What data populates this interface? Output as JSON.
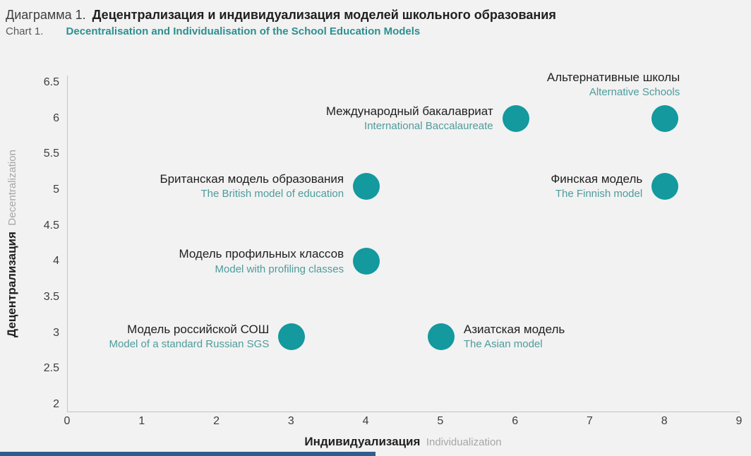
{
  "header": {
    "label_ru": "Диаграмма 1.",
    "title_ru": "Децентрализация и индивидуализация моделей школьного образования",
    "label_en": "Chart 1.",
    "title_en": "Decentralisation and Individualisation of the School Education Models"
  },
  "colors": {
    "background": "#f2f2f2",
    "marker": "#13999e",
    "title_teal": "#2e8f8f",
    "label_en": "#4f9b9b",
    "axis_en": "#a6a6a6",
    "text_dark": "#1f1f1f",
    "accent_bar": "#2e5e8e"
  },
  "chart_data": {
    "type": "scatter",
    "title": "Децентрализация и индивидуализация моделей школьного образования / Decentralisation and Individualisation of the School Education Models",
    "xlabel_ru": "Индивидуализация",
    "xlabel_en": "Individualization",
    "ylabel_ru": "Децентрализация",
    "ylabel_en": "Decentralization",
    "xlim": [
      0,
      9
    ],
    "ylim": [
      2,
      6.5
    ],
    "x_ticks": [
      0,
      1,
      2,
      3,
      4,
      5,
      6,
      7,
      8,
      9
    ],
    "y_ticks": [
      6.5,
      6,
      5.5,
      5,
      4.5,
      4,
      3.5,
      3,
      2.5,
      2
    ],
    "grid": false,
    "legend": false,
    "marker_color": "#13999e",
    "points": [
      {
        "label_ru": "Международный бакалавриат",
        "label_en": "International Baccalaureate",
        "x": 6,
        "y": 6,
        "label_side": "left"
      },
      {
        "label_ru": "Альтернативные школы",
        "label_en": "Alternative Schools",
        "x": 8,
        "y": 6,
        "label_side": "above"
      },
      {
        "label_ru": "Британская модель образования",
        "label_en": "The British model of education",
        "x": 4,
        "y": 5.05,
        "label_side": "left"
      },
      {
        "label_ru": "Финская модель",
        "label_en": "The Finnish model",
        "x": 8,
        "y": 5.05,
        "label_side": "left"
      },
      {
        "label_ru": "Модель профильных классов",
        "label_en": "Model with profiling classes",
        "x": 4,
        "y": 4,
        "label_side": "left"
      },
      {
        "label_ru": "Модель российской СОШ",
        "label_en": "Model of a standard Russian SGS",
        "x": 3,
        "y": 2.95,
        "label_side": "left"
      },
      {
        "label_ru": "Азиатская модель",
        "label_en": "The Asian model",
        "x": 5,
        "y": 2.95,
        "label_side": "right"
      }
    ]
  }
}
